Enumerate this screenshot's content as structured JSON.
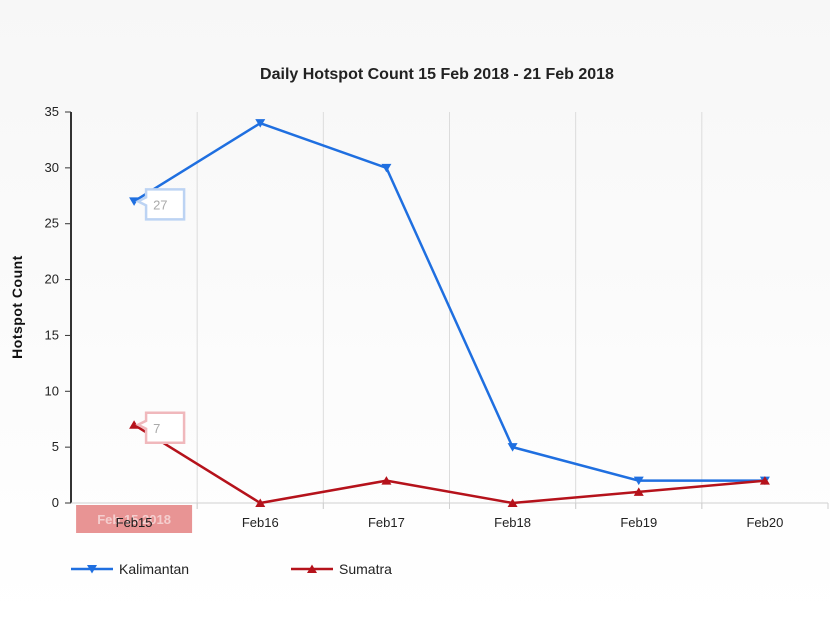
{
  "chart_data": {
    "type": "line",
    "title": "Daily Hotspot Count 15 Feb 2018 - 21 Feb 2018",
    "xlabel": "",
    "ylabel": "Hotspot Count",
    "categories": [
      "Feb15",
      "Feb16",
      "Feb17",
      "Feb18",
      "Feb19",
      "Feb20"
    ],
    "ylim": [
      0,
      35
    ],
    "yticks": [
      0,
      5,
      10,
      15,
      20,
      25,
      30,
      35
    ],
    "grid": "vertical",
    "legend_position": "bottom-left",
    "series": [
      {
        "name": "Kalimantan",
        "values": [
          27,
          34,
          30,
          5,
          2,
          2
        ],
        "color": "#1f6fe0",
        "marker": "triangle-down"
      },
      {
        "name": "Sumatra",
        "values": [
          7,
          0,
          2,
          0,
          1,
          2
        ],
        "color": "#b5121b",
        "marker": "triangle-up"
      }
    ],
    "annotations": [
      {
        "series": "Kalimantan",
        "category": "Feb15",
        "label": "27"
      },
      {
        "series": "Sumatra",
        "category": "Feb15",
        "label": "7"
      }
    ],
    "tooltip": {
      "category": "Feb15",
      "label": "Feb 15 2018"
    }
  }
}
